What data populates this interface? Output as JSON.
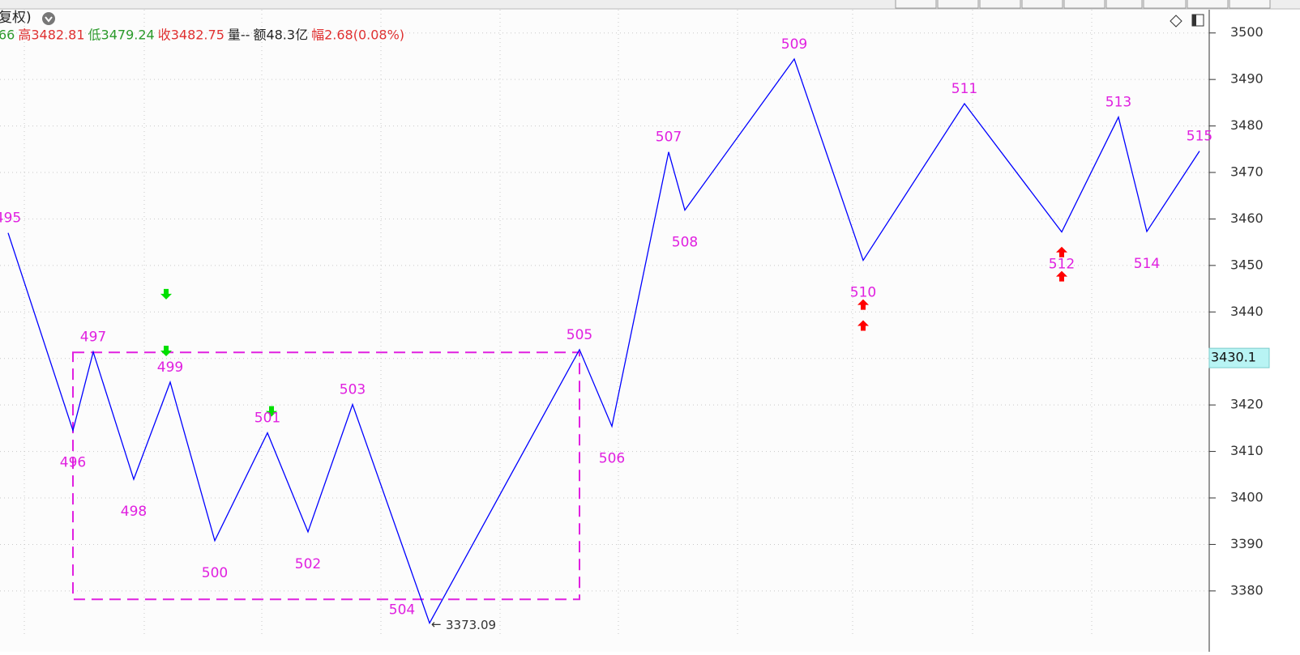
{
  "mode_label": "复权)",
  "header": [
    {
      "text": "66",
      "color": "#2a9a2a"
    },
    {
      "text": "高3482.81",
      "color": "#e03030"
    },
    {
      "text": "低3479.24",
      "color": "#2a9a2a"
    },
    {
      "text": "收3482.75",
      "color": "#e03030"
    },
    {
      "text": "量--",
      "color": "#222222"
    },
    {
      "text": "额48.3亿",
      "color": "#222222"
    },
    {
      "text": "幅2.68(0.08%)",
      "color": "#e03030"
    }
  ],
  "chart_data": {
    "type": "line",
    "categories": [
      "495",
      "496",
      "497",
      "498",
      "499",
      "500",
      "501",
      "502",
      "503",
      "504",
      "505",
      "506",
      "507",
      "508",
      "509",
      "510",
      "511",
      "512",
      "513",
      "514",
      "515"
    ],
    "x": [
      2,
      18,
      23,
      33,
      42,
      53,
      66,
      76,
      87,
      106,
      143,
      151,
      165,
      169,
      196,
      213,
      238,
      262,
      276,
      283,
      296
    ],
    "series": [
      {
        "color": "#0000ff",
        "label_color": "#e020e0",
        "values": [
          3457.0,
          3414.5,
          3431.4,
          3404.0,
          3424.9,
          3390.8,
          3414.0,
          3392.7,
          3420.1,
          3373.09,
          3431.9,
          3415.4,
          3474.4,
          3461.9,
          3494.4,
          3451.1,
          3484.8,
          3457.2,
          3481.9,
          3457.3,
          3474.6
        ]
      }
    ],
    "xlim": [
      0,
      298
    ],
    "ylim": [
      3370.4,
      3505
    ],
    "yticks": [
      3380,
      3390,
      3400,
      3410,
      3420,
      3430,
      3440,
      3450,
      3460,
      3470,
      3480,
      3490,
      3500
    ],
    "grid": true,
    "low_point": 9,
    "last_price": 3430.1,
    "box": {
      "color": "#e020e0",
      "x": [
        18,
        143
      ],
      "y": [
        3378.2,
        3431.3
      ]
    },
    "sell_signals": {
      "color": "#00e000",
      "x": [
        41,
        41,
        67
      ],
      "y": [
        3443.9,
        3431.7,
        3418.7
      ]
    },
    "buy_signals": {
      "color": "#ff0000",
      "x": [
        213,
        213,
        262,
        262
      ],
      "y": [
        3441.5,
        3437.0,
        3452.8,
        3447.6
      ]
    }
  }
}
